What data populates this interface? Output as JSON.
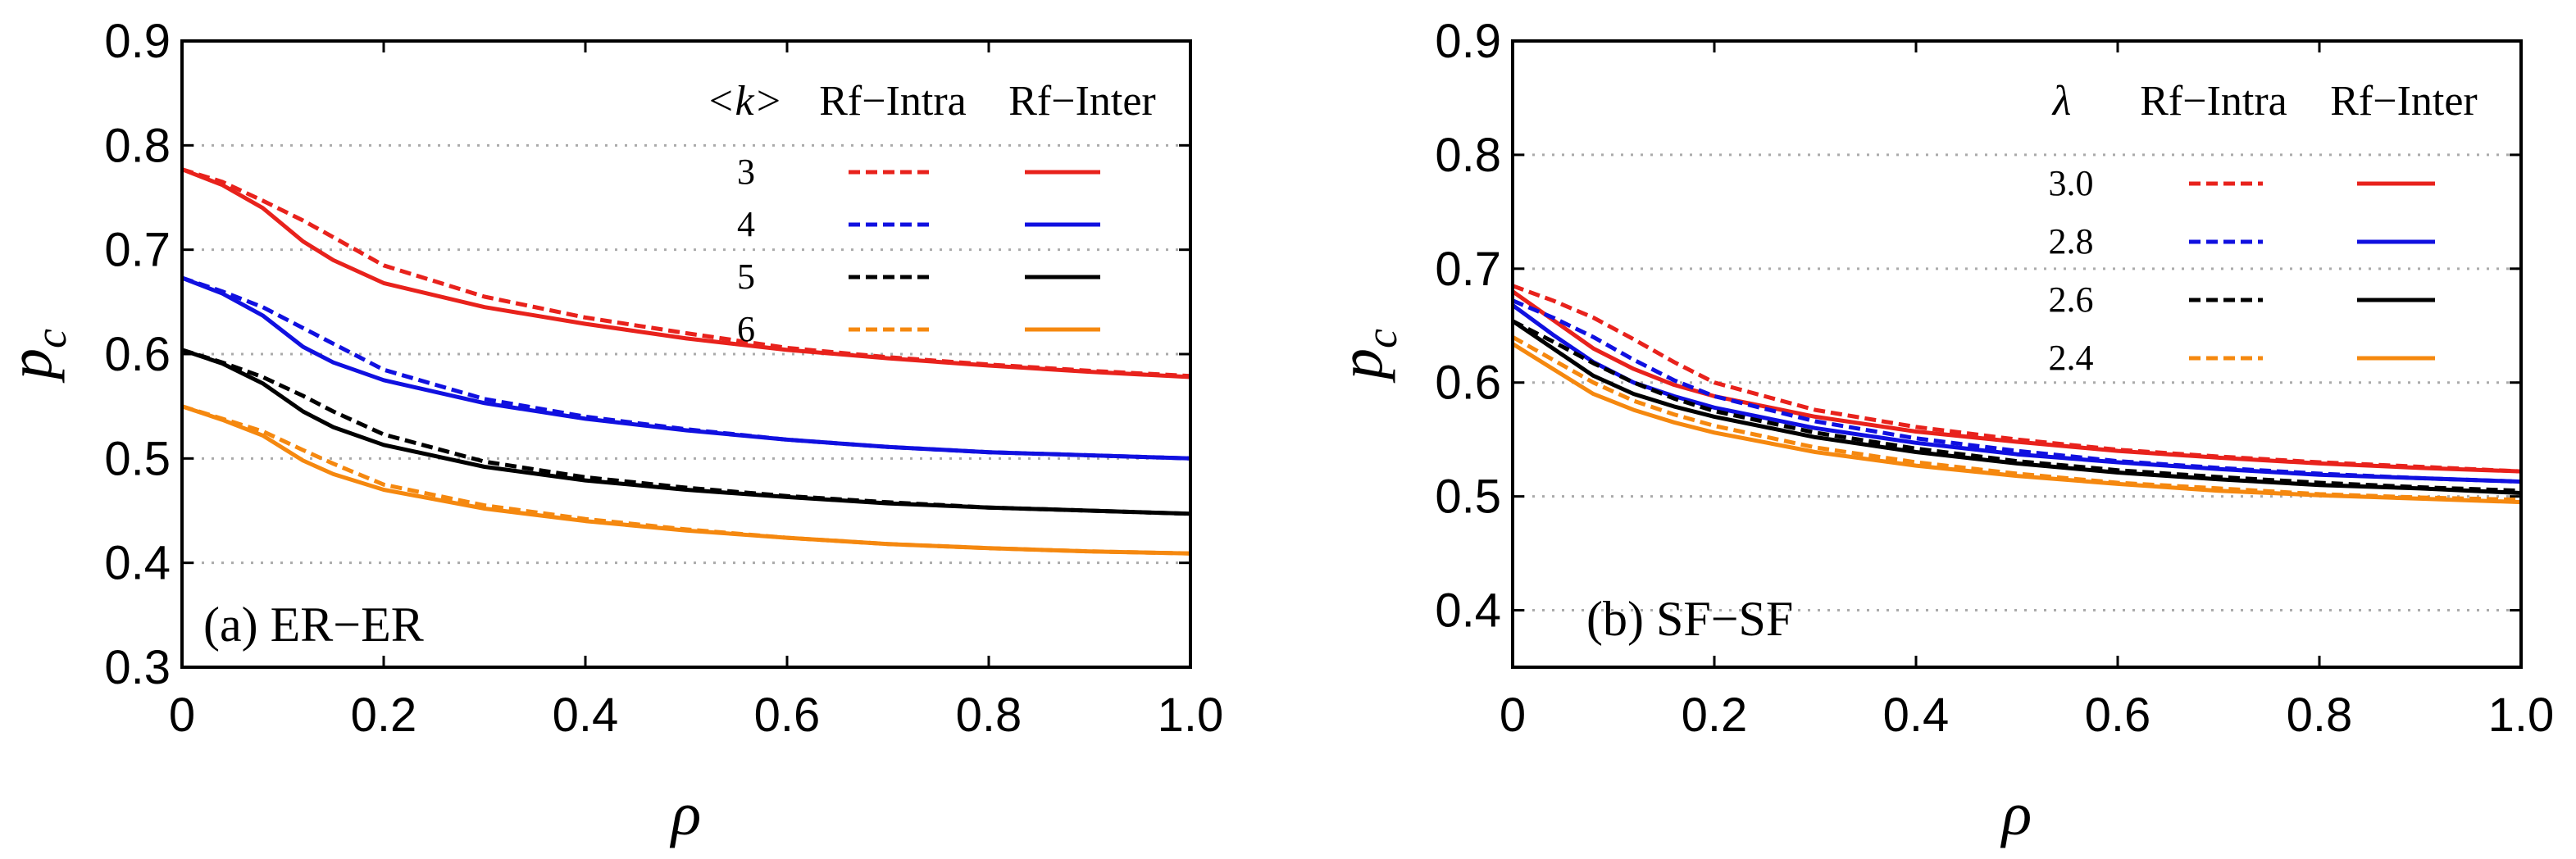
{
  "chart_data": [
    {
      "type": "line",
      "panel_label": "(a) ER−ER",
      "xlabel": "ρ",
      "ylabel": "p",
      "ylabel_sub": "c",
      "xlim": [
        0,
        1.0
      ],
      "ylim": [
        0.3,
        0.9
      ],
      "x_ticks": [
        "0",
        "0.2",
        "0.4",
        "0.6",
        "0.8",
        "1.0"
      ],
      "y_ticks": [
        "0.3",
        "0.4",
        "0.5",
        "0.6",
        "0.7",
        "0.8",
        "0.9"
      ],
      "grid": "horizontal dotted",
      "legend_header": {
        "param": "<k>",
        "intra": "Rf−Intra",
        "inter": "Rf−Inter"
      },
      "series": [
        {
          "param": "3",
          "color": "#e8221c",
          "x": [
            0,
            0.04,
            0.08,
            0.12,
            0.15,
            0.2,
            0.3,
            0.4,
            0.5,
            0.6,
            0.7,
            0.8,
            0.9,
            1.0
          ],
          "intra": [
            0.777,
            0.765,
            0.747,
            0.728,
            0.712,
            0.685,
            0.655,
            0.635,
            0.62,
            0.606,
            0.597,
            0.59,
            0.584,
            0.579
          ],
          "inter": [
            0.777,
            0.762,
            0.74,
            0.708,
            0.69,
            0.668,
            0.645,
            0.629,
            0.615,
            0.604,
            0.596,
            0.589,
            0.583,
            0.578
          ]
        },
        {
          "param": "4",
          "color": "#1010e0",
          "x": [
            0,
            0.04,
            0.08,
            0.12,
            0.15,
            0.2,
            0.3,
            0.4,
            0.5,
            0.6,
            0.7,
            0.8,
            0.9,
            1.0
          ],
          "intra": [
            0.673,
            0.66,
            0.645,
            0.625,
            0.61,
            0.585,
            0.557,
            0.54,
            0.528,
            0.518,
            0.511,
            0.506,
            0.503,
            0.5
          ],
          "inter": [
            0.673,
            0.658,
            0.637,
            0.607,
            0.592,
            0.575,
            0.553,
            0.538,
            0.527,
            0.518,
            0.511,
            0.506,
            0.503,
            0.5
          ]
        },
        {
          "param": "5",
          "color": "#000000",
          "x": [
            0,
            0.04,
            0.08,
            0.12,
            0.15,
            0.2,
            0.3,
            0.4,
            0.5,
            0.6,
            0.7,
            0.8,
            0.9,
            1.0
          ],
          "intra": [
            0.604,
            0.592,
            0.578,
            0.56,
            0.545,
            0.523,
            0.497,
            0.482,
            0.472,
            0.464,
            0.458,
            0.453,
            0.45,
            0.447
          ],
          "inter": [
            0.604,
            0.591,
            0.572,
            0.545,
            0.53,
            0.513,
            0.492,
            0.479,
            0.47,
            0.463,
            0.457,
            0.453,
            0.45,
            0.447
          ]
        },
        {
          "param": "6",
          "color": "#f5880f",
          "x": [
            0,
            0.04,
            0.08,
            0.12,
            0.15,
            0.2,
            0.3,
            0.4,
            0.5,
            0.6,
            0.7,
            0.8,
            0.9,
            1.0
          ],
          "intra": [
            0.55,
            0.538,
            0.526,
            0.508,
            0.495,
            0.475,
            0.455,
            0.442,
            0.432,
            0.424,
            0.418,
            0.414,
            0.411,
            0.409
          ],
          "inter": [
            0.55,
            0.537,
            0.522,
            0.498,
            0.485,
            0.47,
            0.452,
            0.44,
            0.431,
            0.424,
            0.418,
            0.414,
            0.411,
            0.409
          ]
        }
      ]
    },
    {
      "type": "line",
      "panel_label": "(b) SF−SF",
      "xlabel": "ρ",
      "ylabel": "p",
      "ylabel_sub": "c",
      "xlim": [
        0,
        1.0
      ],
      "ylim": [
        0.35,
        0.9
      ],
      "x_ticks": [
        "0",
        "0.2",
        "0.4",
        "0.6",
        "0.8",
        "1.0"
      ],
      "y_ticks": [
        "0.4",
        "0.5",
        "0.6",
        "0.7",
        "0.8",
        "0.9"
      ],
      "grid": "horizontal dotted",
      "legend_header": {
        "param": "λ",
        "intra": "Rf−Intra",
        "inter": "Rf−Inter"
      },
      "series": [
        {
          "param": "3.0",
          "color": "#e8221c",
          "x": [
            0,
            0.04,
            0.08,
            0.12,
            0.16,
            0.2,
            0.3,
            0.4,
            0.5,
            0.6,
            0.7,
            0.8,
            0.9,
            1.0
          ],
          "intra": [
            0.685,
            0.672,
            0.657,
            0.638,
            0.618,
            0.6,
            0.576,
            0.561,
            0.55,
            0.541,
            0.535,
            0.53,
            0.526,
            0.522
          ],
          "inter": [
            0.68,
            0.655,
            0.63,
            0.612,
            0.598,
            0.588,
            0.57,
            0.557,
            0.548,
            0.54,
            0.534,
            0.529,
            0.525,
            0.522
          ]
        },
        {
          "param": "2.8",
          "color": "#1010e0",
          "x": [
            0,
            0.04,
            0.08,
            0.12,
            0.16,
            0.2,
            0.3,
            0.4,
            0.5,
            0.6,
            0.7,
            0.8,
            0.9,
            1.0
          ],
          "intra": [
            0.672,
            0.657,
            0.64,
            0.62,
            0.602,
            0.588,
            0.566,
            0.551,
            0.54,
            0.531,
            0.525,
            0.52,
            0.516,
            0.513
          ],
          "inter": [
            0.668,
            0.642,
            0.618,
            0.6,
            0.588,
            0.578,
            0.56,
            0.547,
            0.537,
            0.53,
            0.524,
            0.519,
            0.516,
            0.513
          ]
        },
        {
          "param": "2.6",
          "color": "#000000",
          "x": [
            0,
            0.04,
            0.08,
            0.12,
            0.16,
            0.2,
            0.3,
            0.4,
            0.5,
            0.6,
            0.7,
            0.8,
            0.9,
            1.0
          ],
          "intra": [
            0.654,
            0.636,
            0.617,
            0.6,
            0.586,
            0.575,
            0.556,
            0.542,
            0.531,
            0.523,
            0.517,
            0.512,
            0.508,
            0.505
          ],
          "inter": [
            0.654,
            0.63,
            0.606,
            0.59,
            0.579,
            0.57,
            0.552,
            0.539,
            0.529,
            0.521,
            0.515,
            0.51,
            0.507,
            0.503
          ]
        },
        {
          "param": "2.4",
          "color": "#f5880f",
          "x": [
            0,
            0.04,
            0.08,
            0.12,
            0.16,
            0.2,
            0.3,
            0.4,
            0.5,
            0.6,
            0.7,
            0.8,
            0.9,
            1.0
          ],
          "intra": [
            0.64,
            0.62,
            0.6,
            0.584,
            0.572,
            0.562,
            0.543,
            0.53,
            0.52,
            0.512,
            0.507,
            0.502,
            0.499,
            0.497
          ],
          "inter": [
            0.634,
            0.612,
            0.59,
            0.576,
            0.565,
            0.556,
            0.539,
            0.527,
            0.518,
            0.511,
            0.505,
            0.501,
            0.498,
            0.495
          ]
        }
      ]
    }
  ]
}
